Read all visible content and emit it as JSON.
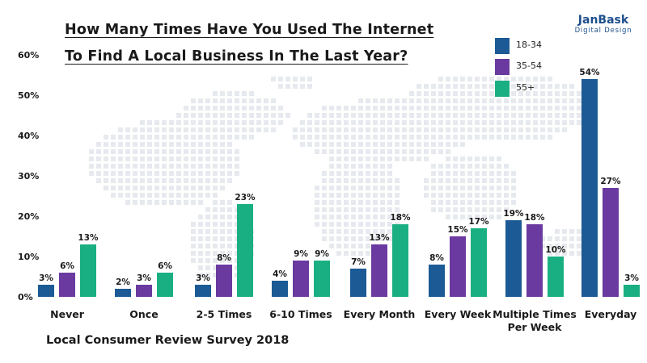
{
  "title_lines": [
    "How Many Times Have You Used The Internet",
    "To Find A Local Business In The Last Year?"
  ],
  "logo": {
    "main": "JanBask",
    "sub": "Digital Design"
  },
  "source": "Local Consumer Review Survey 2018",
  "colors": {
    "18-34": "#1b5a94",
    "35-54": "#6a3aa0",
    "55+": "#1aaf82",
    "map": "#e6e9ee"
  },
  "chart_data": {
    "type": "bar",
    "title": "How Many Times Have You Used The Internet To Find A Local Business In The Last Year?",
    "categories": [
      "Never",
      "Once",
      "2-5 Times",
      "6-10 Times",
      "Every Month",
      "Every Week",
      "Multiple Times Per Week",
      "Everyday"
    ],
    "category_lines": [
      [
        "Never"
      ],
      [
        "Once"
      ],
      [
        "2-5 Times"
      ],
      [
        "6-10 Times"
      ],
      [
        "Every Month"
      ],
      [
        "Every Week"
      ],
      [
        "Multiple Times",
        "Per Week"
      ],
      [
        "Everyday"
      ]
    ],
    "series": [
      {
        "name": "18-34",
        "color": "#1b5a94",
        "values": [
          3,
          2,
          3,
          4,
          7,
          8,
          19,
          54
        ]
      },
      {
        "name": "35-54",
        "color": "#6a3aa0",
        "values": [
          6,
          3,
          8,
          9,
          13,
          15,
          18,
          27
        ]
      },
      {
        "name": "55+",
        "color": "#1aaf82",
        "values": [
          13,
          6,
          23,
          9,
          18,
          17,
          10,
          3
        ]
      }
    ],
    "ylim": [
      0,
      60
    ],
    "yticks": [
      "0%",
      "10%",
      "20%",
      "30%",
      "40%",
      "50%",
      "60%"
    ],
    "ytick_values": [
      0,
      10,
      20,
      30,
      40,
      50,
      60
    ],
    "value_suffix": "%",
    "xlabel": "",
    "ylabel": "",
    "legend_position": "top-right",
    "grid": false
  }
}
